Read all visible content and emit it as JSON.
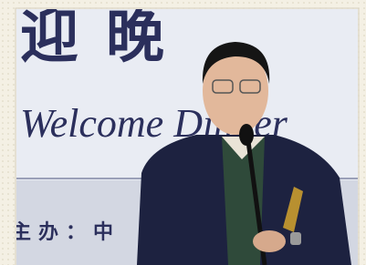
{
  "photo": {
    "banner_title": "迎晚",
    "banner_subtitle": "Welcome Dinner",
    "banner_host": "主办：中"
  }
}
